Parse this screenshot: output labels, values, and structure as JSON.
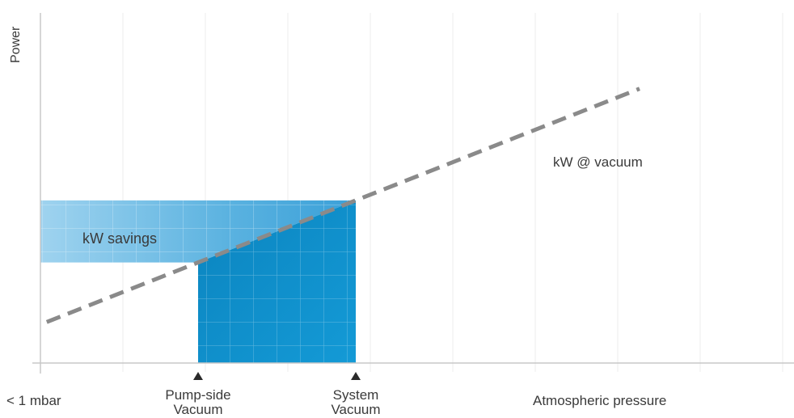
{
  "chart_data": {
    "type": "line",
    "ylabel": "Power",
    "xlabel": "",
    "grid": true,
    "line": {
      "label": "kW @ vacuum",
      "style": "dashed",
      "color": "#8a8a8a",
      "x": [
        0.02,
        1.9
      ],
      "y": [
        0.13,
        0.87
      ]
    },
    "x_markers": [
      {
        "name": "pump-side",
        "label_lines": [
          "Pump-side",
          "Vacuum"
        ],
        "x": 0.5
      },
      {
        "name": "system",
        "label_lines": [
          "System",
          "Vacuum"
        ],
        "x": 1.0
      }
    ],
    "x_tick_labels": [
      {
        "name": "low",
        "text": "< 1 mbar",
        "x": -0.1
      },
      {
        "name": "atmospheric",
        "text": "Atmospheric pressure",
        "x": 1.53
      }
    ],
    "regions": [
      {
        "name": "kw-savings",
        "label": "kW savings",
        "color": "#4aa8dc"
      },
      {
        "name": "operating-area",
        "color": "#0a8cc6"
      }
    ],
    "colors": {
      "axis": "#c8c8c8",
      "grid": "#ececec",
      "text": "#3a3a3a"
    }
  }
}
